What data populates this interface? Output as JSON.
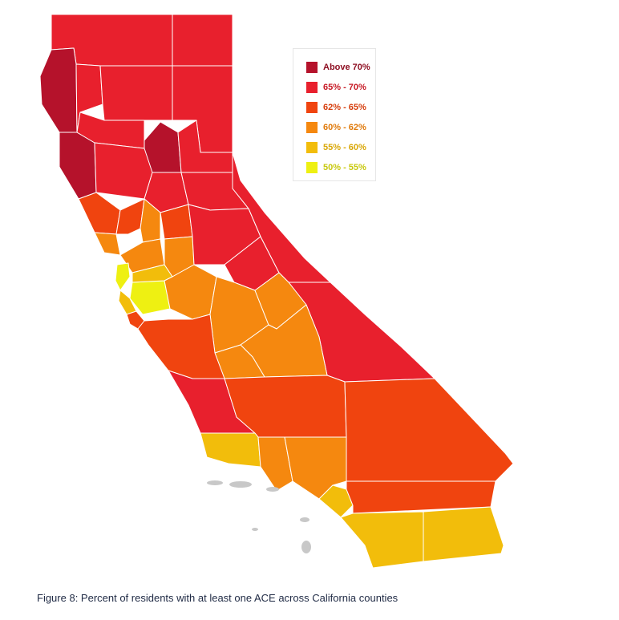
{
  "legend": {
    "items": [
      {
        "label": "Above 70%",
        "color": "#b5122b",
        "text_color": "#8e0f22"
      },
      {
        "label": "65% - 70%",
        "color": "#e8202d",
        "text_color": "#c71a25"
      },
      {
        "label": "62% - 65%",
        "color": "#f0440f",
        "text_color": "#d63e0d"
      },
      {
        "label": "60% - 62%",
        "color": "#f5880f",
        "text_color": "#e07a0b"
      },
      {
        "label": "55% - 60%",
        "color": "#f2bd0b",
        "text_color": "#d9a707"
      },
      {
        "label": "50% - 55%",
        "color": "#eef012",
        "text_color": "#c8c80e"
      }
    ]
  },
  "caption": "Figure 8: Percent of residents with at least one ACE across California counties",
  "colors": {
    "island": "#c8c8c8",
    "border": "#ffffff"
  }
}
